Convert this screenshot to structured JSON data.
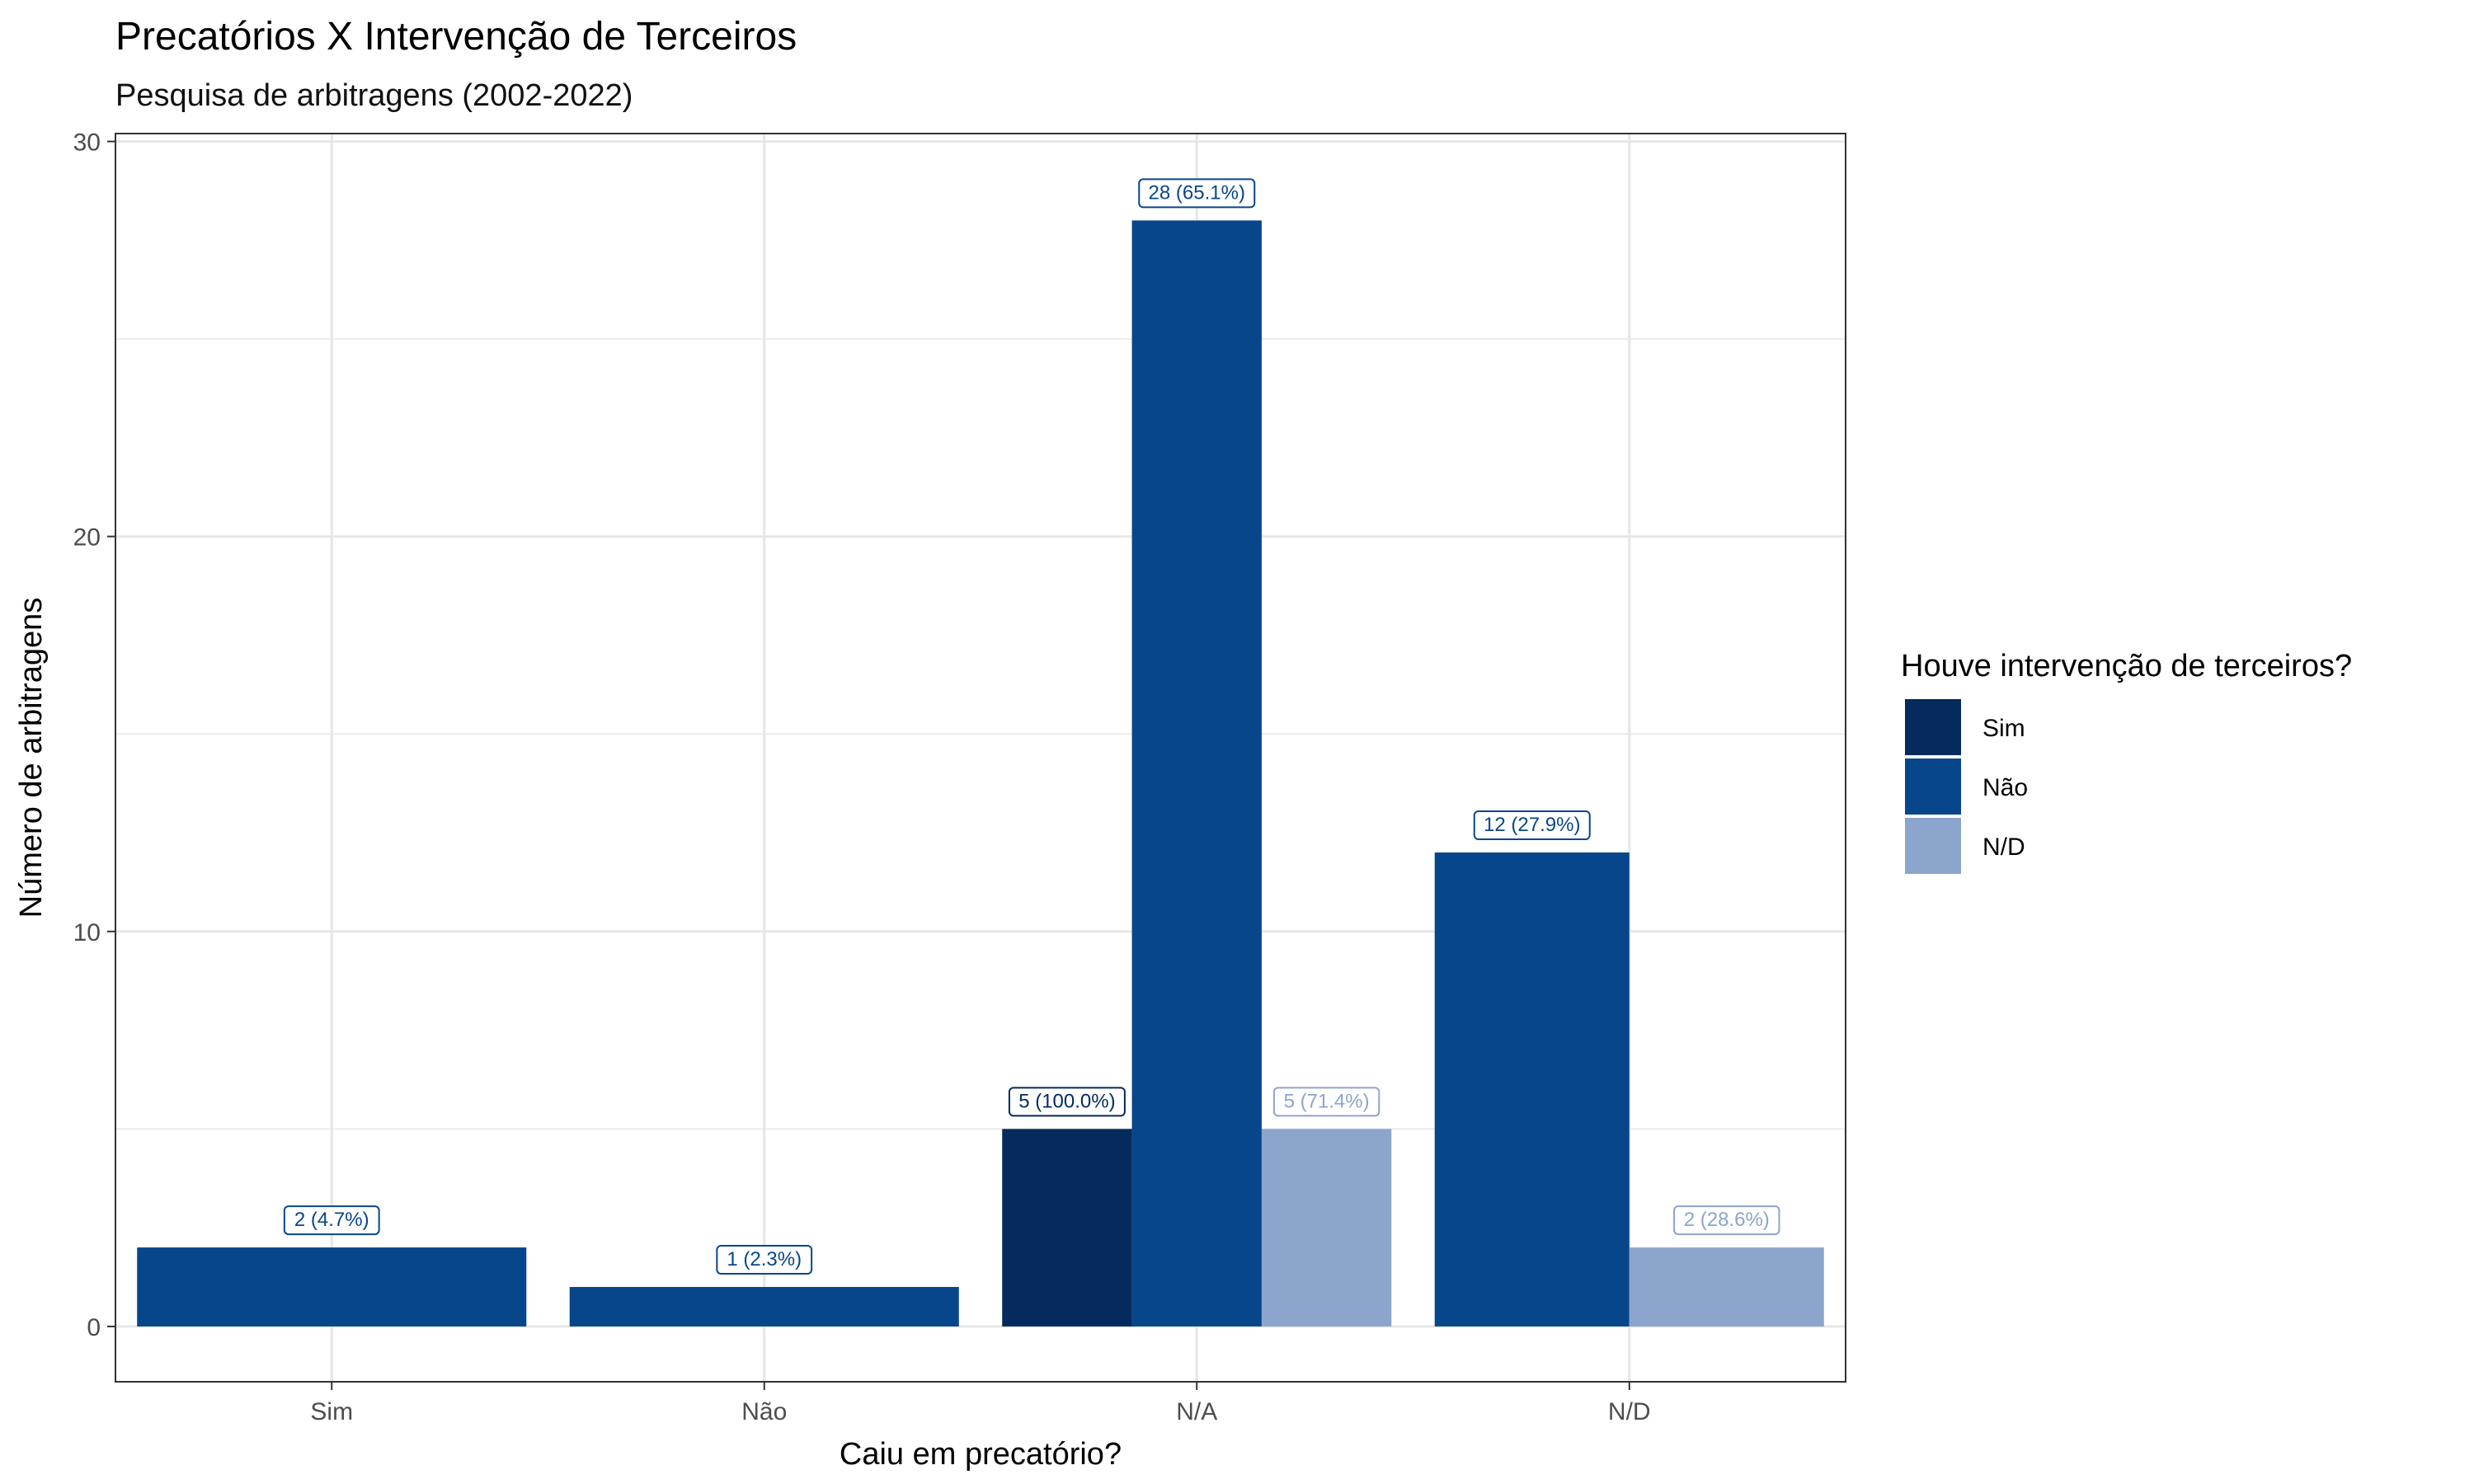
{
  "chart_data": {
    "type": "bar",
    "title": "Precatórios X Intervenção de Terceiros",
    "subtitle": "Pesquisa de arbitragens (2002-2022)",
    "xlabel": "Caiu em precatório?",
    "ylabel": "Número de arbitragens",
    "categories": [
      "Sim",
      "Não",
      "N/A",
      "N/D"
    ],
    "ylim": [
      -1.4,
      30.2
    ],
    "yticks": [
      0,
      10,
      20,
      30
    ],
    "grid": true,
    "legend": {
      "title": "Houve intervenção de terceiros?",
      "placement": "right",
      "entries": [
        "Sim",
        "Não",
        "N/D"
      ]
    },
    "series": [
      {
        "name": "Sim",
        "color": "#042a5e",
        "values": [
          null,
          null,
          5,
          null
        ],
        "labels": [
          null,
          null,
          "5 (100.0%)",
          null
        ]
      },
      {
        "name": "Não",
        "color": "#08468b",
        "values": [
          2,
          1,
          28,
          12
        ],
        "labels": [
          "2 (4.7%)",
          "1 (2.3%)",
          "28 (65.1%)",
          "12 (27.9%)"
        ]
      },
      {
        "name": "N/D",
        "color": "#8ca5cd",
        "values": [
          null,
          null,
          5,
          2
        ],
        "labels": [
          null,
          null,
          "5 (71.4%)",
          "2 (28.6%)"
        ]
      }
    ]
  }
}
